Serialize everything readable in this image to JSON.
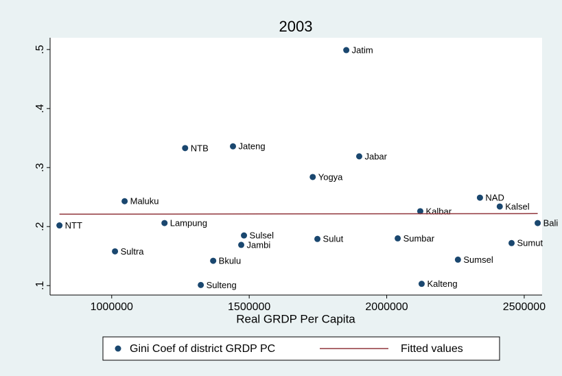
{
  "chart_data": {
    "type": "scatter",
    "title": "2003",
    "x_label": "Real GRDP Per Capita",
    "xlim": [
      776000,
      2565000
    ],
    "xticks": [
      1000000,
      1500000,
      2000000,
      2500000
    ],
    "ylim": [
      0.084,
      0.52
    ],
    "yticks": [
      {
        "value": 0.1,
        "label": ".1"
      },
      {
        "value": 0.2,
        "label": ".2"
      },
      {
        "value": 0.3,
        "label": ".3"
      },
      {
        "value": 0.4,
        "label": ".4"
      },
      {
        "value": 0.5,
        "label": ".5"
      }
    ],
    "grid": false,
    "legend_position": "bottom",
    "series": [
      {
        "name": "Gini Coef of district GRDP PC",
        "color": "#1a476f",
        "kind": "scatter",
        "point_labels": [
          "NTT",
          "Sultra",
          "Maluku",
          "Lampung",
          "NTB",
          "Sulteng",
          "Bkulu",
          "Jateng",
          "Sulsel",
          "Jambi",
          "Yogya",
          "Sulut",
          "Jatim",
          "Jabar",
          "Sumbar",
          "Kalbar",
          "Kalteng",
          "Sumsel",
          "NAD",
          "Kalsel",
          "Sumut",
          "Bali"
        ],
        "x": [
          810000,
          1012000,
          1047000,
          1192000,
          1267000,
          1324000,
          1369000,
          1441000,
          1481000,
          1471000,
          1731000,
          1748000,
          1853000,
          1900000,
          2040000,
          2122000,
          2127000,
          2259000,
          2339000,
          2411000,
          2454000,
          2549000
        ],
        "values": [
          0.202,
          0.158,
          0.243,
          0.206,
          0.333,
          0.101,
          0.142,
          0.336,
          0.185,
          0.169,
          0.284,
          0.179,
          0.499,
          0.319,
          0.18,
          0.226,
          0.103,
          0.144,
          0.249,
          0.234,
          0.172,
          0.206
        ]
      },
      {
        "name": "Fitted values",
        "color": "#90353b",
        "kind": "line",
        "x": [
          810000,
          2549000
        ],
        "values": [
          0.221,
          0.222
        ]
      }
    ]
  }
}
